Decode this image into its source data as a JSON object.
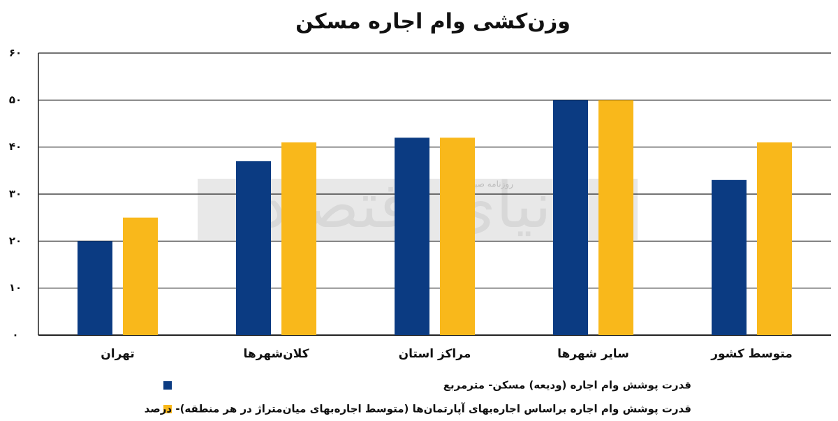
{
  "chart_data": {
    "type": "bar",
    "title": "وزن‌کشی وام اجاره مسکن",
    "categories": [
      "تهران",
      "کلان‌شهرها",
      "مراکز استان",
      "سایر شهرها",
      "متوسط کشور"
    ],
    "series": [
      {
        "name": "قدرت پوشش وام اجاره (ودیعه) مسکن- مترمربع",
        "color": "#0b3b82",
        "values": [
          20,
          37,
          42,
          50,
          33
        ]
      },
      {
        "name": "قدرت پوشش وام اجاره براساس اجاره‌بهای آپارتمان‌ها (متوسط اجاره‌بهای میان‌متراژ در هر منطقه)- درصد",
        "color": "#f9b81b",
        "values": [
          25,
          41,
          42,
          50,
          41
        ]
      }
    ],
    "ylim": [
      0,
      60
    ],
    "yticks": [
      {
        "value": 0,
        "label": "۰"
      },
      {
        "value": 10,
        "label": "۱۰"
      },
      {
        "value": 20,
        "label": "۲۰"
      },
      {
        "value": 30,
        "label": "۳۰"
      },
      {
        "value": 40,
        "label": "۴۰"
      },
      {
        "value": 50,
        "label": "۵۰"
      },
      {
        "value": 60,
        "label": "۶۰"
      }
    ],
    "grid": true,
    "watermark": [
      "روزنامه صبح ایران",
      "دنیای اقتصاد"
    ]
  }
}
